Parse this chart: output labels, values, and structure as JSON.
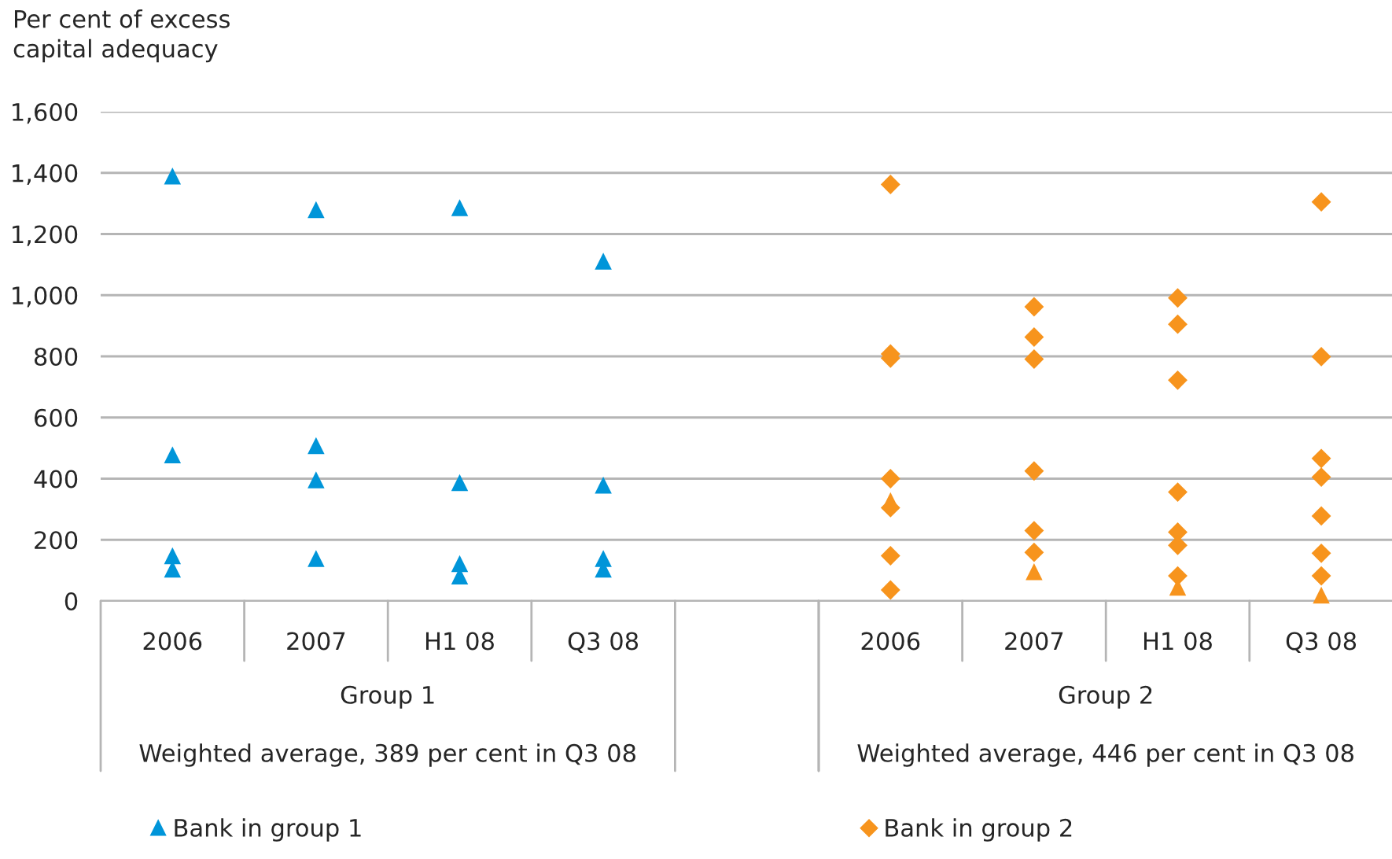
{
  "chart_data": [
    {
      "type": "scatter",
      "ylabel": "Per cent of excess\ncapital adequacy",
      "categories": [
        "2006",
        "2007",
        "H1 08",
        "Q3 08",
        null
      ],
      "series": [
        {
          "name": "Bank in group 1",
          "color": "#0095d9",
          "marker": "triangle",
          "values": [
            1390,
            1280,
            1286,
            1111,
            null
          ]
        },
        {
          "color": "#0095d9",
          "marker": "triangle",
          "values": [
            478,
            508,
            387,
            379,
            null
          ]
        },
        {
          "color": "#0095d9",
          "marker": "triangle",
          "values": [
            148,
            396,
            122,
            139,
            null
          ]
        },
        {
          "color": "#0095d9",
          "marker": "triangle",
          "values": [
            104,
            139,
            82,
            104,
            null
          ]
        }
      ],
      "ylim": [
        0,
        1600
      ],
      "yticks": [
        {
          "value": 0,
          "label": "0"
        },
        {
          "value": 200,
          "label": "200"
        },
        {
          "value": 400,
          "label": "400"
        },
        {
          "value": 600,
          "label": "600"
        },
        {
          "value": 800,
          "label": "800"
        },
        {
          "value": 1000,
          "label": "1,000"
        },
        {
          "value": 1200,
          "label": "1,200"
        },
        {
          "value": 1400,
          "label": "1,400"
        },
        {
          "value": 1600,
          "label": "1,600"
        }
      ],
      "grid": "y",
      "legend": "bottom left",
      "annotations": [
        "Group 1",
        "Weighted average, 389 per cent in Q3 08"
      ]
    },
    {
      "type": "scatter",
      "categories": [
        "2006",
        "2007",
        "H1 08",
        "Q3 08"
      ],
      "series": [
        {
          "name": "Bank in group 2",
          "color": "#f7941d",
          "marker": "diamond",
          "values": [
            1362,
            962,
            991,
            1305
          ]
        },
        {
          "color": "#f7941d",
          "marker": "diamond",
          "values": [
            808,
            863,
            905,
            799
          ]
        },
        {
          "color": "#f7941d",
          "marker": "diamond",
          "values": [
            794,
            791,
            722,
            466
          ]
        },
        {
          "color": "#f7941d",
          "marker": "diamond",
          "values": [
            400,
            425,
            356,
            405
          ]
        },
        {
          "color": "#f7941d",
          "marker": "diamond",
          "values": [
            305,
            230,
            225,
            278
          ]
        },
        {
          "color": "#f7941d",
          "marker": "diamond",
          "values": [
            148,
            159,
            182,
            156
          ]
        },
        {
          "color": "#f7941d",
          "marker": "diamond",
          "values": [
            36,
            null,
            82,
            82
          ]
        },
        {
          "color": "#f7941d",
          "marker": "triangle",
          "values": [
            328,
            96,
            45,
            19
          ]
        }
      ],
      "ylim": [
        0,
        1600
      ],
      "yticks": [
        0,
        200,
        400,
        600,
        800,
        1000,
        1200,
        1400,
        1600
      ],
      "tick_labels": "x",
      "grid": "y",
      "legend": "bottom left",
      "annotations": [
        "Group 2",
        "Weighted average, 446 per cent in Q3 08"
      ]
    }
  ]
}
